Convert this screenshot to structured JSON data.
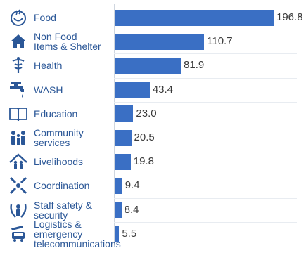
{
  "chart_data": {
    "type": "bar",
    "orientation": "horizontal",
    "categories": [
      "Food",
      "Non Food\nItems & Shelter",
      "Health",
      "WASH",
      "Education",
      "Community\nservices",
      "Livelihoods",
      "Coordination",
      "Staff safety &\nsecurity",
      "Logistics &\nemergency\ntelecommunications"
    ],
    "values": [
      196.8,
      110.7,
      81.9,
      43.4,
      23.0,
      20.5,
      19.8,
      9.4,
      8.4,
      5.5
    ],
    "value_labels": [
      "196.8",
      "110.7",
      "81.9",
      "43.4",
      "23.0",
      "20.5",
      "19.8",
      "9.4",
      "8.4",
      "5.5"
    ],
    "icons": [
      "food-icon",
      "shelter-icon",
      "health-icon",
      "wash-tap-icon",
      "education-book-icon",
      "community-people-icon",
      "livelihoods-icon",
      "coordination-icon",
      "staff-safety-icon",
      "logistics-truck-icon"
    ],
    "bar_color": "#3a6fc4",
    "label_color": "#2b5797",
    "title": "",
    "xlabel": "",
    "ylabel": ""
  }
}
